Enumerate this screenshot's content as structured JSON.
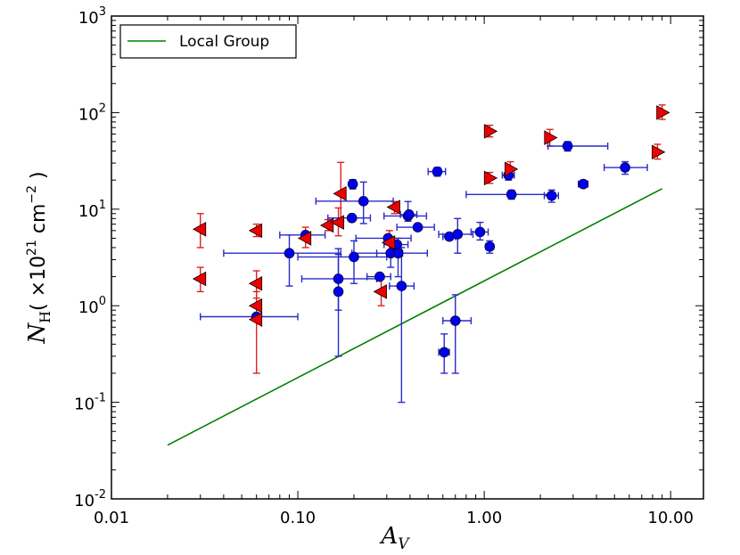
{
  "chart_data": {
    "type": "scatter",
    "x_scale": "log",
    "y_scale": "log",
    "xlim": [
      0.01,
      15
    ],
    "ylim": [
      0.01,
      1000
    ],
    "x_ticks": [
      {
        "value": 0.01,
        "label": "0.01"
      },
      {
        "value": 0.1,
        "label": "0.10"
      },
      {
        "value": 1,
        "label": "1.00"
      },
      {
        "value": 10,
        "label": "10.00"
      }
    ],
    "y_ticks": [
      {
        "value": 0.01,
        "base": "10",
        "exp": "-2"
      },
      {
        "value": 0.1,
        "base": "10",
        "exp": "-1"
      },
      {
        "value": 1,
        "base": "10",
        "exp": "0"
      },
      {
        "value": 10,
        "base": "10",
        "exp": "1"
      },
      {
        "value": 100,
        "base": "10",
        "exp": "2"
      },
      {
        "value": 1000,
        "base": "10",
        "exp": "3"
      }
    ],
    "xlabel": {
      "symbol": "A",
      "sub": "V"
    },
    "ylabel": {
      "symbol": "N",
      "sub": "H",
      "unit_prefix": "( ×10",
      "unit_exp1": "21",
      "unit_mid": " cm",
      "unit_exp2": "−2",
      "unit_suffix": " )"
    },
    "legend": {
      "placement": "top-left",
      "entries": [
        {
          "label": "Local Group",
          "color": "#008000"
        }
      ]
    },
    "grid": false,
    "colors": {
      "circles": "#0000ee",
      "circle_err": "#2a2acc",
      "triangles": "#ee0000",
      "triangle_err": "#dd2222",
      "line": "#008000"
    },
    "line_series": {
      "name": "Local Group",
      "x": [
        0.02,
        9.0
      ],
      "y": [
        0.036,
        16.3
      ]
    },
    "circles": [
      {
        "x": 0.06,
        "y": 0.77,
        "xerr": [
          0.03,
          0.04
        ]
      },
      {
        "x": 0.09,
        "y": 3.5,
        "xerr": [
          0.05,
          0.08
        ],
        "yerr": [
          1.9,
          1.9
        ]
      },
      {
        "x": 0.11,
        "y": 5.4,
        "xerr": [
          0.03,
          0.03
        ]
      },
      {
        "x": 0.165,
        "y": 1.4,
        "yerr": [
          1.1,
          2.0
        ]
      },
      {
        "x": 0.165,
        "y": 1.9,
        "xerr": [
          0.06,
          0.1
        ],
        "yerr": [
          1.0,
          2.0
        ]
      },
      {
        "x": 0.195,
        "y": 8.1,
        "xerr": [
          0.05,
          0.05
        ]
      },
      {
        "x": 0.197,
        "y": 18.2,
        "yerr": [
          2.0,
          2.0
        ]
      },
      {
        "x": 0.2,
        "y": 3.2,
        "xerr": [
          0.1,
          0.1
        ],
        "yerr": [
          1.5,
          1.5
        ]
      },
      {
        "x": 0.225,
        "y": 12.1,
        "xerr": [
          0.1,
          0.1
        ],
        "yerr": [
          5.0,
          7.0
        ]
      },
      {
        "x": 0.275,
        "y": 2.0,
        "xerr": [
          0.04,
          0.04
        ]
      },
      {
        "x": 0.305,
        "y": 5.0,
        "xerr": [
          0.1,
          0.1
        ]
      },
      {
        "x": 0.315,
        "y": 3.5,
        "xerr": [
          0.05,
          0.05
        ],
        "yerr": [
          1.0,
          1.0
        ]
      },
      {
        "x": 0.34,
        "y": 4.3,
        "xerr": [
          0.05,
          0.05
        ]
      },
      {
        "x": 0.345,
        "y": 3.5,
        "xerr": [
          0.15,
          0.15
        ],
        "yerr": [
          1.5,
          1.5
        ]
      },
      {
        "x": 0.36,
        "y": 1.6,
        "xerr": [
          0.05,
          0.06
        ],
        "yerr": [
          1.5,
          2.4
        ]
      },
      {
        "x": 0.39,
        "y": 8.5,
        "xerr": [
          0.1,
          0.1
        ],
        "yerr": [
          1.0,
          3.5
        ]
      },
      {
        "x": 0.395,
        "y": 8.8,
        "xerr": [
          0.04,
          0.04
        ]
      },
      {
        "x": 0.44,
        "y": 6.5,
        "xerr": [
          0.1,
          0.1
        ]
      },
      {
        "x": 0.56,
        "y": 24.5,
        "xerr": [
          0.06,
          0.06
        ],
        "yerr": [
          2.5,
          2.5
        ]
      },
      {
        "x": 0.61,
        "y": 0.33,
        "xerr": [
          0.04,
          0.04
        ],
        "yerr": [
          0.13,
          0.18
        ]
      },
      {
        "x": 0.65,
        "y": 5.2,
        "xerr": [
          0.05,
          0.05
        ]
      },
      {
        "x": 0.7,
        "y": 0.7,
        "xerr": [
          0.1,
          0.15
        ],
        "yerr": [
          0.5,
          0.6
        ]
      },
      {
        "x": 0.72,
        "y": 5.5,
        "xerr": [
          0.15,
          0.15
        ],
        "yerr": [
          2.0,
          2.5
        ]
      },
      {
        "x": 0.95,
        "y": 5.8,
        "xerr": [
          0.1,
          0.1
        ],
        "yerr": [
          1.0,
          1.5
        ]
      },
      {
        "x": 1.07,
        "y": 4.1,
        "xerr": [
          0.05,
          0.05
        ],
        "yerr": [
          0.6,
          0.6
        ]
      },
      {
        "x": 1.35,
        "y": 22.5,
        "xerr": [
          0.1,
          0.1
        ],
        "yerr": [
          2.5,
          2.5
        ]
      },
      {
        "x": 1.4,
        "y": 14.2,
        "xerr": [
          0.6,
          0.9
        ],
        "yerr": [
          1.5,
          1.5
        ]
      },
      {
        "x": 2.3,
        "y": 13.8,
        "xerr": [
          0.2,
          0.2
        ],
        "yerr": [
          2.0,
          2.0
        ]
      },
      {
        "x": 2.8,
        "y": 45.0,
        "xerr": [
          0.6,
          1.8
        ],
        "yerr": [
          5.0,
          5.0
        ]
      },
      {
        "x": 3.4,
        "y": 18.2,
        "xerr": [
          0.2,
          0.2
        ]
      },
      {
        "x": 5.7,
        "y": 27.0,
        "xerr": [
          1.3,
          1.8
        ],
        "yerr": [
          4.0,
          4.0
        ]
      }
    ],
    "triangles_left": [
      {
        "x": 0.03,
        "y": 6.2,
        "xerr": [
          0.0,
          0.0
        ],
        "yerr": [
          2.2,
          2.8
        ]
      },
      {
        "x": 0.03,
        "y": 1.9,
        "yerr": [
          0.5,
          0.6
        ]
      },
      {
        "x": 0.06,
        "y": 6.0,
        "yerr": [
          0.8,
          1.0
        ]
      },
      {
        "x": 0.06,
        "y": 1.7,
        "yerr": [
          0.5,
          0.6
        ]
      },
      {
        "x": 0.06,
        "y": 1.0,
        "yerr": [
          0.3,
          0.4
        ]
      },
      {
        "x": 0.06,
        "y": 0.72,
        "yerr": [
          0.52,
          0.0
        ]
      },
      {
        "x": 0.11,
        "y": 5.0,
        "yerr": [
          1.0,
          1.5
        ]
      },
      {
        "x": 0.145,
        "y": 6.8,
        "yerr": [
          0.8,
          1.0
        ]
      },
      {
        "x": 0.165,
        "y": 7.3,
        "yerr": [
          2.0,
          3.0
        ]
      },
      {
        "x": 0.17,
        "y": 14.5,
        "yerr": [
          7.0,
          16.0
        ]
      },
      {
        "x": 0.28,
        "y": 1.4,
        "yerr": [
          0.4,
          0.5
        ]
      },
      {
        "x": 0.31,
        "y": 4.5,
        "yerr": [
          1.0,
          1.5
        ]
      },
      {
        "x": 0.33,
        "y": 10.5,
        "yerr": [
          1.5,
          1.5
        ]
      }
    ],
    "triangles_right": [
      {
        "x": 1.07,
        "y": 64.0,
        "yerr": [
          8.0,
          10.0
        ]
      },
      {
        "x": 1.07,
        "y": 21.0,
        "yerr": [
          2.5,
          3.0
        ]
      },
      {
        "x": 1.38,
        "y": 26.0,
        "yerr": [
          4.0,
          5.0
        ]
      },
      {
        "x": 2.25,
        "y": 55.0,
        "yerr": [
          10.0,
          12.0
        ]
      },
      {
        "x": 8.5,
        "y": 39.0,
        "yerr": [
          6.0,
          8.0
        ]
      },
      {
        "x": 9.0,
        "y": 100.0,
        "yerr": [
          15.0,
          20.0
        ]
      }
    ]
  }
}
